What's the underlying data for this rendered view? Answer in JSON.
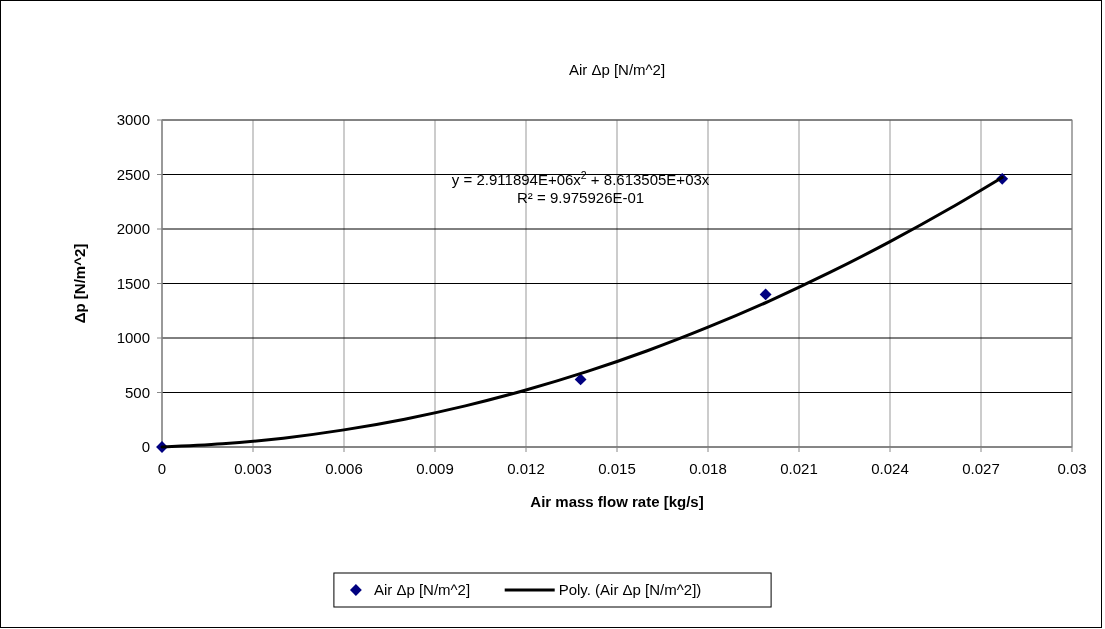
{
  "chart_data": {
    "type": "scatter",
    "title": "Air Δp [N/m^2]",
    "xlabel": "Air mass flow rate [kg/s]",
    "ylabel": "Δp [N/m^2]",
    "xlim": [
      0,
      0.03
    ],
    "xticks": [
      0,
      0.003,
      0.006,
      0.009,
      0.012,
      0.015,
      0.018,
      0.021,
      0.024,
      0.027,
      0.03
    ],
    "ylim": [
      0,
      3000
    ],
    "yticks": [
      0,
      500,
      1000,
      1500,
      2000,
      2500,
      3000
    ],
    "grid": true,
    "legend": "bottom",
    "annotations": [
      "y = 2.911894E+06x$^{2}$ + 8.613505E+03x",
      "R² = 9.975926E-01"
    ],
    "series": [
      {
        "name": "Air Δp [N/m^2]",
        "marker": "diamond",
        "color": "#000080",
        "x": [
          0,
          0.0138,
          0.0199,
          0.0277
        ],
        "values": [
          0,
          620,
          1400,
          2460
        ]
      },
      {
        "name": "Poly. (Air Δp [N/m^2])",
        "type": "line",
        "marker": "none",
        "line_style": "solid",
        "color": "#000000",
        "x": [
          0,
          0.002,
          0.004,
          0.006,
          0.008,
          0.01,
          0.012,
          0.014,
          0.016,
          0.018,
          0.02,
          0.022,
          0.024,
          0.026,
          0.0277
        ],
        "values": [
          0,
          29,
          81,
          157,
          255,
          377,
          523,
          691,
          883,
          1099,
          1337,
          1599,
          1884,
          2192,
          2473
        ]
      }
    ]
  }
}
